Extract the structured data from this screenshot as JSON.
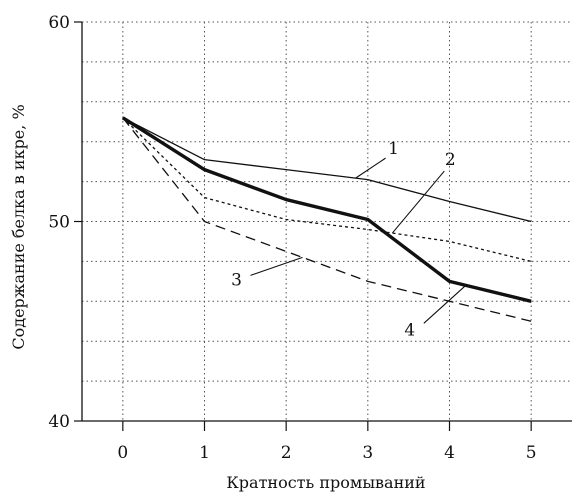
{
  "chart_data": {
    "type": "line",
    "title": "",
    "xlabel": "Кратность промываний",
    "ylabel": "Содержание белка в икре, %",
    "x": [
      0,
      1,
      2,
      3,
      4,
      5
    ],
    "xlim": [
      -0.5,
      5.5
    ],
    "ylim": [
      40,
      60
    ],
    "y_ticks": [
      40,
      50,
      60
    ],
    "y_minor_grid": [
      42,
      44,
      46,
      48,
      52,
      54,
      56,
      58
    ],
    "grid": "dotted",
    "legend": "inline numeric labels with leader lines",
    "series": [
      {
        "label": "1",
        "values": [
          55.2,
          53.1,
          52.6,
          52.1,
          51.0,
          50.0
        ],
        "line_style": "solid",
        "line_weight": "thin"
      },
      {
        "label": "2",
        "values": [
          55.2,
          51.2,
          50.1,
          49.6,
          49.0,
          48.0
        ],
        "line_style": "dotted",
        "line_weight": "thin"
      },
      {
        "label": "3",
        "values": [
          55.2,
          50.0,
          48.5,
          47.0,
          46.0,
          45.0
        ],
        "line_style": "dashed",
        "line_weight": "thin"
      },
      {
        "label": "4",
        "values": [
          55.2,
          52.6,
          51.1,
          50.1,
          47.0,
          46.0
        ],
        "line_style": "solid",
        "line_weight": "thick"
      }
    ],
    "colors": {
      "lines": "#111111",
      "grid": "#555555",
      "background": "#ffffff"
    }
  }
}
